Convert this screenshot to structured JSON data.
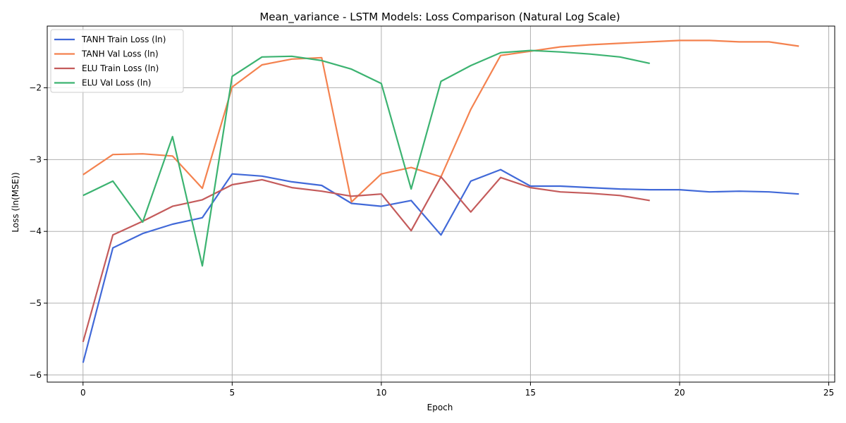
{
  "chart_data": {
    "type": "line",
    "title": "Mean_variance - LSTM Models: Loss Comparison (Natural Log Scale)",
    "xlabel": "Epoch",
    "ylabel": "Loss (ln(MSE))",
    "xlim": [
      -1.2,
      25.2
    ],
    "ylim": [
      -6.1,
      -1.14
    ],
    "xticks": [
      0,
      5,
      10,
      15,
      20,
      25
    ],
    "yticks": [
      -6,
      -5,
      -4,
      -3,
      -2
    ],
    "ytick_labels": [
      "−6",
      "−5",
      "−4",
      "−3",
      "−2"
    ],
    "grid": true,
    "legend_position": "top-left",
    "series": [
      {
        "name": "TANH Train Loss (ln)",
        "color": "#4169d8",
        "x": [
          0,
          1,
          2,
          3,
          4,
          5,
          6,
          7,
          8,
          9,
          10,
          11,
          12,
          13,
          14,
          15,
          16,
          17,
          18,
          19,
          20,
          21,
          22,
          23,
          24
        ],
        "y": [
          -5.83,
          -4.23,
          -4.03,
          -3.9,
          -3.81,
          -3.2,
          -3.23,
          -3.31,
          -3.36,
          -3.61,
          -3.65,
          -3.57,
          -4.05,
          -3.3,
          -3.14,
          -3.37,
          -3.37,
          -3.39,
          -3.41,
          -3.42,
          -3.42,
          -3.45,
          -3.44,
          -3.45,
          -3.48
        ]
      },
      {
        "name": "TANH Val Loss (ln)",
        "color": "#f4824f",
        "x": [
          0,
          1,
          2,
          3,
          4,
          5,
          6,
          7,
          8,
          9,
          10,
          11,
          12,
          13,
          14,
          15,
          16,
          17,
          18,
          19,
          20,
          21,
          22,
          23,
          24
        ],
        "y": [
          -3.21,
          -2.93,
          -2.92,
          -2.95,
          -3.4,
          -1.99,
          -1.68,
          -1.6,
          -1.58,
          -3.59,
          -3.2,
          -3.11,
          -3.24,
          -2.3,
          -1.55,
          -1.49,
          -1.43,
          -1.4,
          -1.38,
          -1.36,
          -1.34,
          -1.34,
          -1.36,
          -1.36,
          -1.42
        ]
      },
      {
        "name": "ELU Train Loss (ln)",
        "color": "#c45b5b",
        "x": [
          0,
          1,
          2,
          3,
          4,
          5,
          6,
          7,
          8,
          9,
          10,
          11,
          12,
          13,
          14,
          15,
          16,
          17,
          18,
          19
        ],
        "y": [
          -5.54,
          -4.05,
          -3.86,
          -3.65,
          -3.56,
          -3.35,
          -3.28,
          -3.39,
          -3.44,
          -3.51,
          -3.48,
          -3.99,
          -3.24,
          -3.73,
          -3.25,
          -3.39,
          -3.45,
          -3.47,
          -3.5,
          -3.57
        ]
      },
      {
        "name": "ELU Val Loss (ln)",
        "color": "#3cb371",
        "x": [
          0,
          1,
          2,
          3,
          4,
          5,
          6,
          7,
          8,
          9,
          10,
          11,
          12,
          13,
          14,
          15,
          16,
          17,
          18,
          19
        ],
        "y": [
          -3.5,
          -3.3,
          -3.87,
          -2.68,
          -4.48,
          -1.84,
          -1.57,
          -1.56,
          -1.62,
          -1.74,
          -1.94,
          -3.41,
          -1.91,
          -1.69,
          -1.51,
          -1.48,
          -1.5,
          -1.53,
          -1.57,
          -1.66
        ]
      }
    ]
  }
}
